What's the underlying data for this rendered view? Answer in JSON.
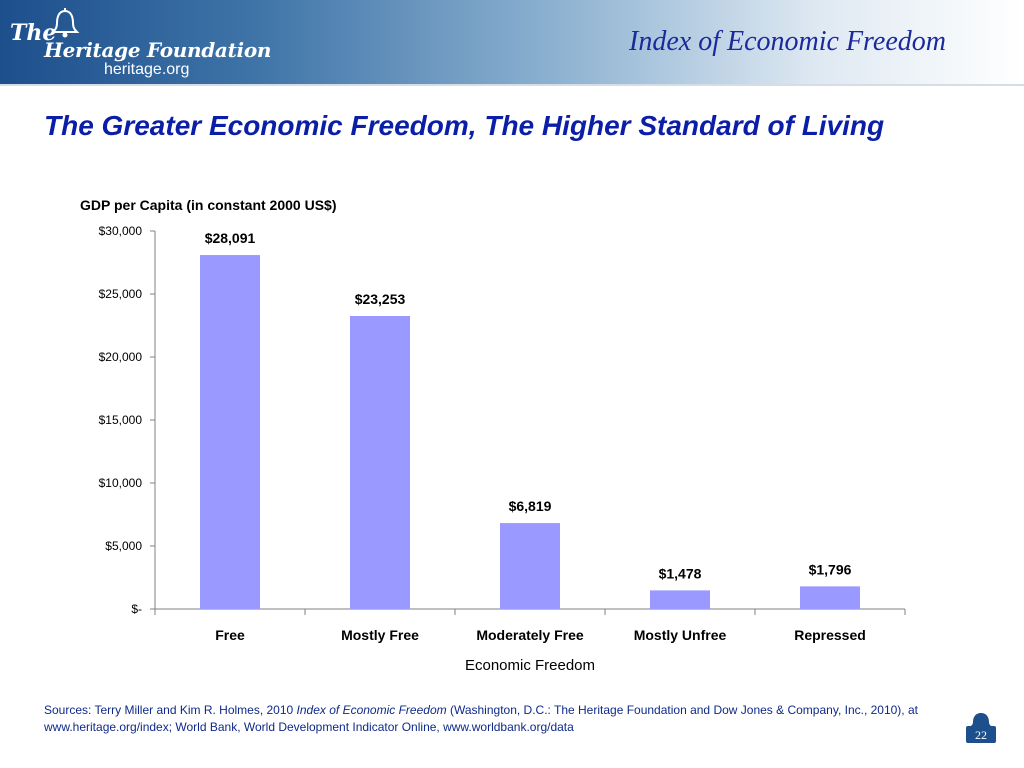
{
  "header": {
    "logo_the": "The",
    "logo_name": "Heritage Foundation",
    "logo_url": "heritage.org",
    "brand": "Index of Economic Freedom"
  },
  "slide": {
    "title": "The Greater Economic Freedom, The Higher Standard of Living",
    "page_number": "22"
  },
  "chart_data": {
    "type": "bar",
    "title": "GDP per Capita (in constant 2000 US$)",
    "xlabel": "Economic Freedom",
    "ylabel": "",
    "categories": [
      "Free",
      "Mostly Free",
      "Moderately Free",
      "Mostly Unfree",
      "Repressed"
    ],
    "values": [
      28091,
      23253,
      6819,
      1478,
      1796
    ],
    "value_labels": [
      "$28,091",
      "$23,253",
      "$6,819",
      "$1,478",
      "$1,796"
    ],
    "ylim": [
      0,
      30000
    ],
    "yticks": [
      0,
      5000,
      10000,
      15000,
      20000,
      25000,
      30000
    ],
    "ytick_labels": [
      "$-",
      "$5,000",
      "$10,000",
      "$15,000",
      "$20,000",
      "$25,000",
      "$30,000"
    ],
    "grid": false,
    "legend": "none",
    "bar_color": "#9999ff"
  },
  "sources": {
    "prefix": "Sources: Terry Miller and Kim R. Holmes, 2010 ",
    "italic": "Index of Economic Freedom",
    "suffix": " (Washington, D.C.: The Heritage Foundation and Dow Jones & Company, Inc., 2010), at www.heritage.org/index; World Bank, World Development Indicator Online, www.worldbank.org/data"
  }
}
